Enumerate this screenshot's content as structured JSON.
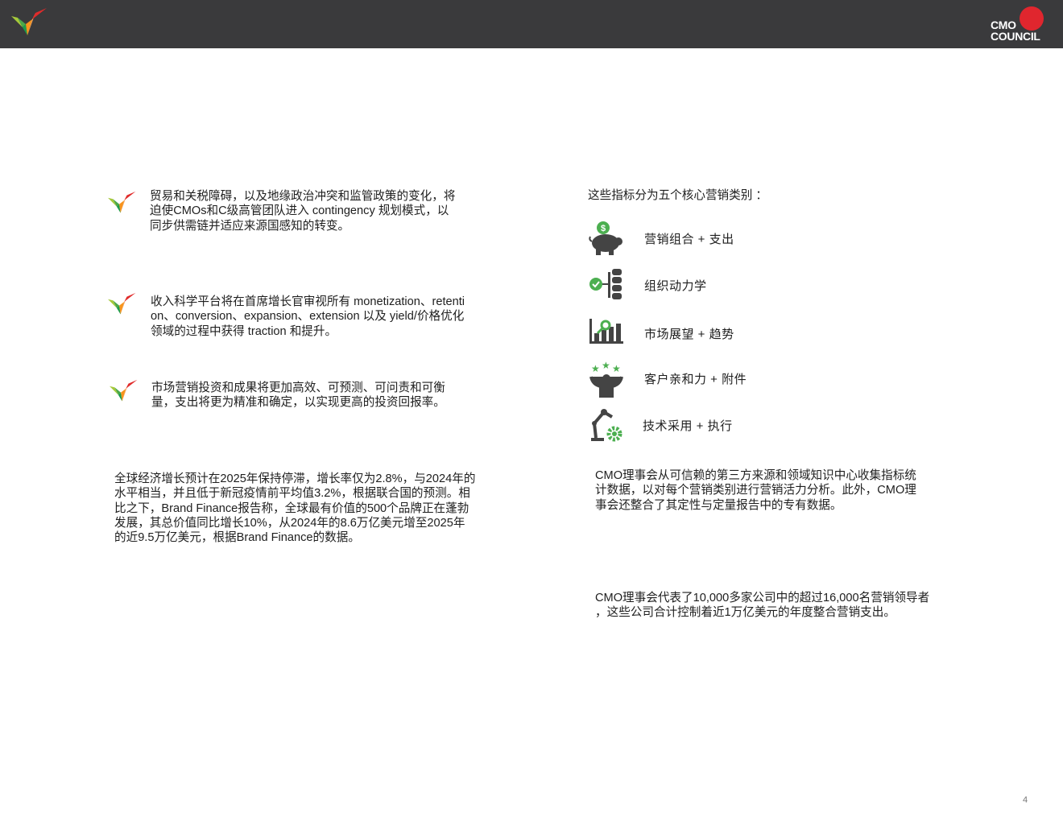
{
  "header": {
    "logo_text": "CMO COUNCIL",
    "logo_line1": "CMO",
    "logo_line2": "COUNCIL"
  },
  "left": {
    "bullets": [
      {
        "lines": [
          "贸易和关税障碍，以及地缘政治冲突和监管政策的变化，将",
          "迫使CMOs和C级高管团队进入 contingency 规划模式，以",
          "同步供需链并适应来源国感知的转变。"
        ]
      },
      {
        "lines": [
          "收入科学平台将在首席增长官审视所有 monetization、retenti",
          "on、conversion、expansion、extension 以及 yield/价格优化",
          "领域的过程中获得 traction 和提升。"
        ]
      },
      {
        "lines": [
          "市场营销投资和成果将更加高效、可预测、可问责和可衡",
          "量，支出将更为精准和确定，以实现更高的投资回报率。"
        ]
      }
    ],
    "paragraph": {
      "lines": [
        "全球经济增长预计在2025年保持停滞，增长率仅为2.8%，与2024年的",
        "水平相当，并且低于新冠疫情前平均值3.2%，根据联合国的预测。相",
        "比之下，Brand Finance报告称，全球最有价值的500个品牌正在蓬勃",
        "发展，其总价值同比增长10%，从2024年的8.6万亿美元增至2025年",
        "的近9.5万亿美元，根据Brand Finance的数据。"
      ]
    }
  },
  "right": {
    "intro": "这些指标分为五个核心营销类别 ：",
    "categories": [
      {
        "label": "营销组合 + 支出",
        "icon": "piggy-bank-dollar-icon"
      },
      {
        "label": "组织动力学",
        "icon": "org-hierarchy-check-icon"
      },
      {
        "label": "市场展望 + 趋势",
        "icon": "bar-chart-magnifier-icon"
      },
      {
        "label": "客户亲和力 + 附件",
        "icon": "person-stars-icon"
      },
      {
        "label": "技术采用 + 执行",
        "icon": "robot-arm-gear-icon"
      }
    ],
    "paragraph1": {
      "lines": [
        "CMO理事会从可信赖的第三方来源和领域知识中心收集指标统",
        "计数据，以对每个营销类别进行营销活力分析。此外，CMO理",
        "事会还整合了其定性与定量报告中的专有数据。"
      ]
    },
    "paragraph2": {
      "lines": [
        "CMO理事会代表了10,000多家公司中的超过16,000名营销领导者",
        "，这些公司合计控制着近1万亿美元的年度整合营销支出。"
      ]
    }
  },
  "page_number": "4",
  "colors": {
    "header_bg": "#3a3a3c",
    "accent_green": "#4caf50",
    "icon_gray": "#444444",
    "logo_red": "#e0262e"
  }
}
